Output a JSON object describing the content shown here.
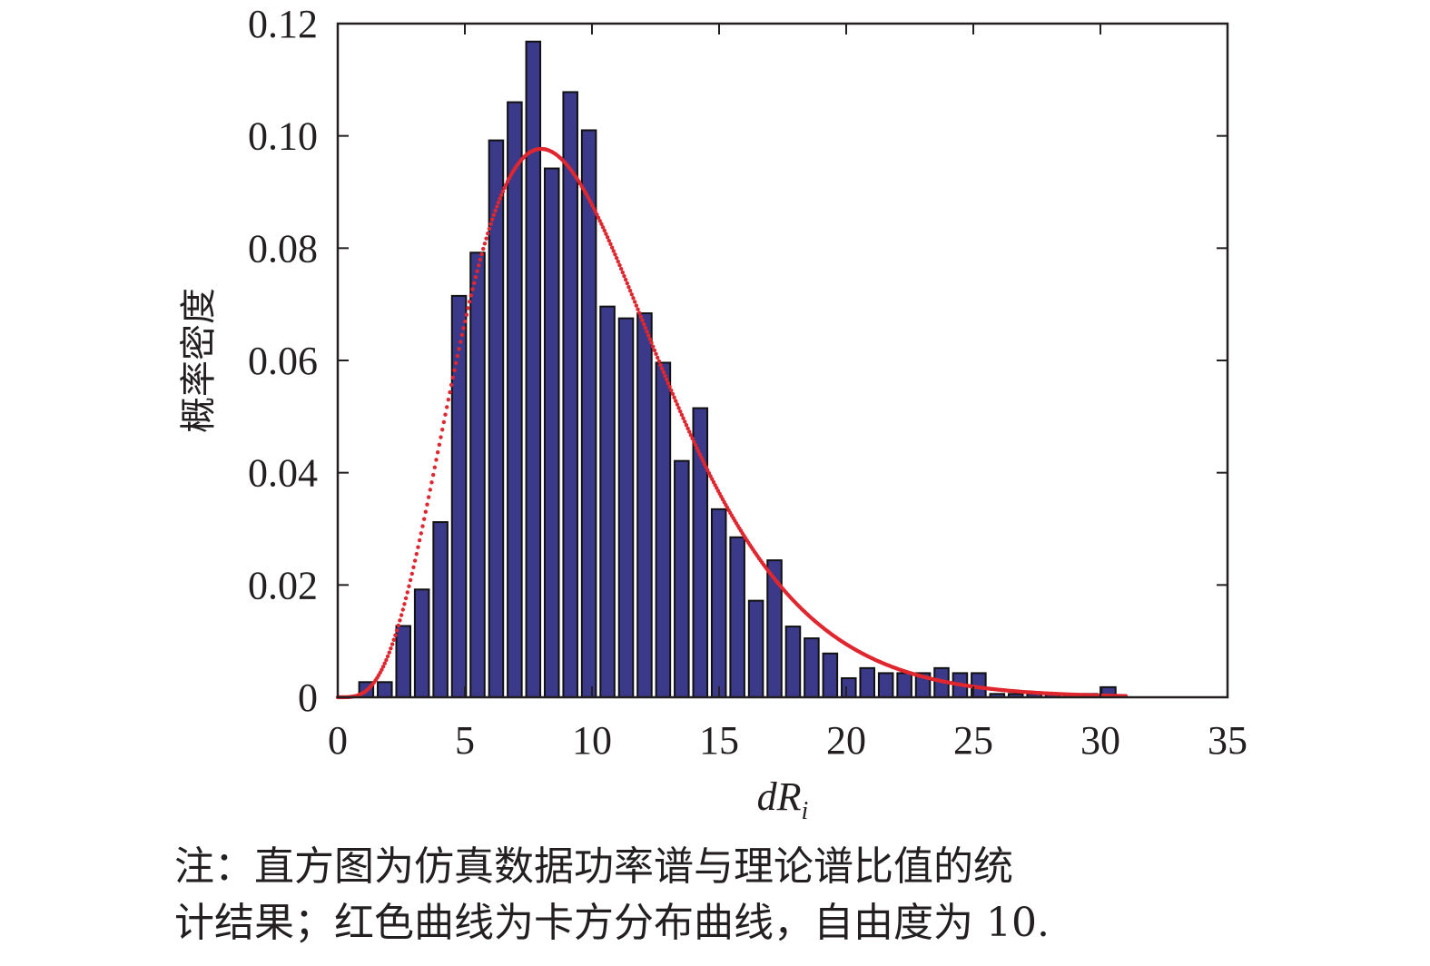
{
  "chart_data": {
    "type": "bar",
    "title": "",
    "ylabel": "概率密度",
    "xlabel": {
      "main": "dR",
      "sub": "i"
    },
    "xlim": [
      0,
      35
    ],
    "ylim": [
      0,
      0.12
    ],
    "xticks": [
      "0",
      "5",
      "10",
      "15",
      "20",
      "25",
      "30",
      "35"
    ],
    "yticks": [
      "0",
      "0.02",
      "0.04",
      "0.06",
      "0.08",
      "0.10",
      "0.12"
    ],
    "bin_width": 0.73,
    "bar_color": "#3b3a8a",
    "bar_edge_color": "#111111",
    "histogram": {
      "name": "直方图",
      "x": [
        1.12,
        1.85,
        2.58,
        3.31,
        4.04,
        4.77,
        5.5,
        6.23,
        6.96,
        7.69,
        8.42,
        9.15,
        9.88,
        10.61,
        11.34,
        12.07,
        12.8,
        13.53,
        14.26,
        14.99,
        15.72,
        16.45,
        17.18,
        17.91,
        18.64,
        19.37,
        20.1,
        20.83,
        21.56,
        22.29,
        23.02,
        23.75,
        24.48,
        25.21,
        25.94,
        26.67,
        27.4,
        28.13,
        28.86,
        29.59,
        30.32
      ],
      "values": [
        0.0027,
        0.0027,
        0.0127,
        0.0192,
        0.0312,
        0.0715,
        0.0792,
        0.0992,
        0.106,
        0.1168,
        0.0942,
        0.1078,
        0.101,
        0.0696,
        0.0675,
        0.0684,
        0.0596,
        0.0421,
        0.0515,
        0.0335,
        0.0285,
        0.0172,
        0.0244,
        0.0126,
        0.0105,
        0.0078,
        0.0034,
        0.0052,
        0.0043,
        0.0043,
        0.0043,
        0.0052,
        0.0043,
        0.0043,
        0.0006,
        0.0006,
        0.0006,
        0.0006,
        0.0006,
        0.0006,
        0.0018
      ]
    },
    "curve": {
      "name": "卡方分布曲线",
      "distribution": "chi-square",
      "degrees_of_freedom": 10,
      "x_range": [
        0,
        31
      ],
      "color": "#e0262e"
    }
  },
  "caption": {
    "line1": "注：直方图为仿真数据功率谱与理论谱比值的统",
    "line2": "计结果；红色曲线为卡方分布曲线，自由度为 10."
  }
}
